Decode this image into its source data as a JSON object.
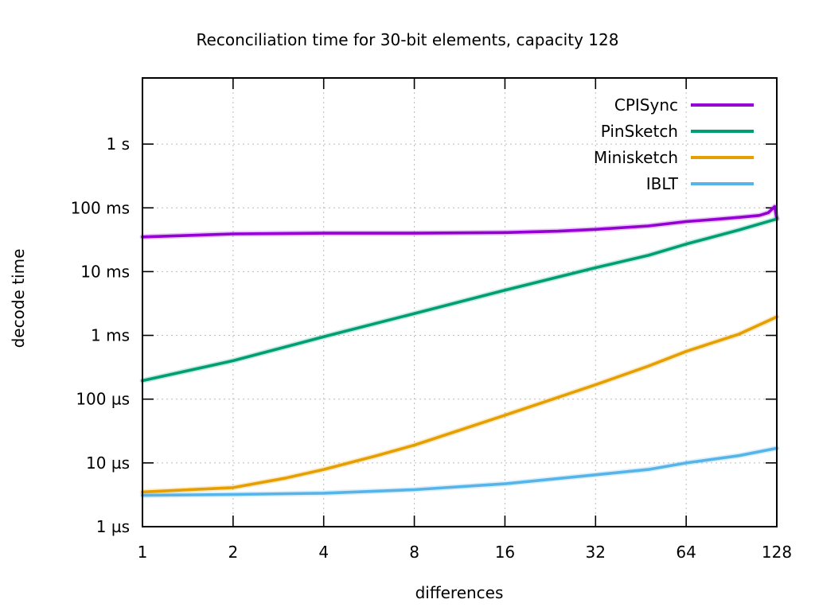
{
  "title": "Reconciliation time for 30-bit elements, capacity 128",
  "chart_data": {
    "type": "line",
    "title": "Reconciliation time for 30-bit elements, capacity 128",
    "xlabel": "differences",
    "ylabel": "decode time",
    "x_scale": "log2",
    "y_scale": "log10",
    "xlim": [
      1,
      128
    ],
    "ylim_seconds": [
      1e-06,
      11
    ],
    "grid": true,
    "legend_position": "top-right-inside",
    "x_ticks": [
      {
        "value": 1,
        "label": "1"
      },
      {
        "value": 2,
        "label": "2"
      },
      {
        "value": 4,
        "label": "4"
      },
      {
        "value": 8,
        "label": "8"
      },
      {
        "value": 16,
        "label": "16"
      },
      {
        "value": 32,
        "label": "32"
      },
      {
        "value": 64,
        "label": "64"
      },
      {
        "value": 128,
        "label": "128"
      }
    ],
    "y_ticks": [
      {
        "value": 1,
        "label": "1 s"
      },
      {
        "value": 0.1,
        "label": "100 ms"
      },
      {
        "value": 0.01,
        "label": "10 ms"
      },
      {
        "value": 0.001,
        "label": "1 ms"
      },
      {
        "value": 0.0001,
        "label": "100 µs"
      },
      {
        "value": 1e-05,
        "label": "10 µs"
      },
      {
        "value": 1e-06,
        "label": "1 µs"
      }
    ],
    "series": [
      {
        "name": "CPISync",
        "color": "#9400d3",
        "x": [
          1,
          2,
          4,
          8,
          16,
          24,
          32,
          48,
          64,
          80,
          96,
          112,
          120,
          126,
          128
        ],
        "y_seconds": [
          0.035,
          0.039,
          0.04,
          0.04,
          0.041,
          0.043,
          0.046,
          0.052,
          0.061,
          0.066,
          0.071,
          0.076,
          0.084,
          0.105,
          0.068
        ]
      },
      {
        "name": "PinSketch",
        "color": "#009e73",
        "x": [
          1,
          2,
          4,
          8,
          16,
          32,
          48,
          64,
          96,
          128
        ],
        "y_seconds": [
          0.000195,
          0.0004,
          0.00095,
          0.0022,
          0.0051,
          0.0115,
          0.018,
          0.027,
          0.045,
          0.067
        ]
      },
      {
        "name": "Minisketch",
        "color": "#e69f00",
        "x": [
          1,
          2,
          3,
          4,
          6,
          8,
          16,
          32,
          48,
          64,
          96,
          128
        ],
        "y_seconds": [
          3.5e-06,
          4.1e-06,
          5.8e-06,
          7.9e-06,
          1.3e-05,
          1.9e-05,
          5.6e-05,
          0.000168,
          0.00033,
          0.00056,
          0.00105,
          0.00195
        ]
      },
      {
        "name": "IBLT",
        "color": "#56b4e9",
        "x": [
          1,
          2,
          4,
          8,
          16,
          32,
          48,
          64,
          96,
          128
        ],
        "y_seconds": [
          3.1e-06,
          3.2e-06,
          3.35e-06,
          3.8e-06,
          4.7e-06,
          6.5e-06,
          7.9e-06,
          1e-05,
          1.3e-05,
          1.7e-05
        ]
      }
    ],
    "style": {
      "grid_color": "#bcbcbc",
      "border_color": "#000000",
      "text_color": "#000000"
    }
  }
}
